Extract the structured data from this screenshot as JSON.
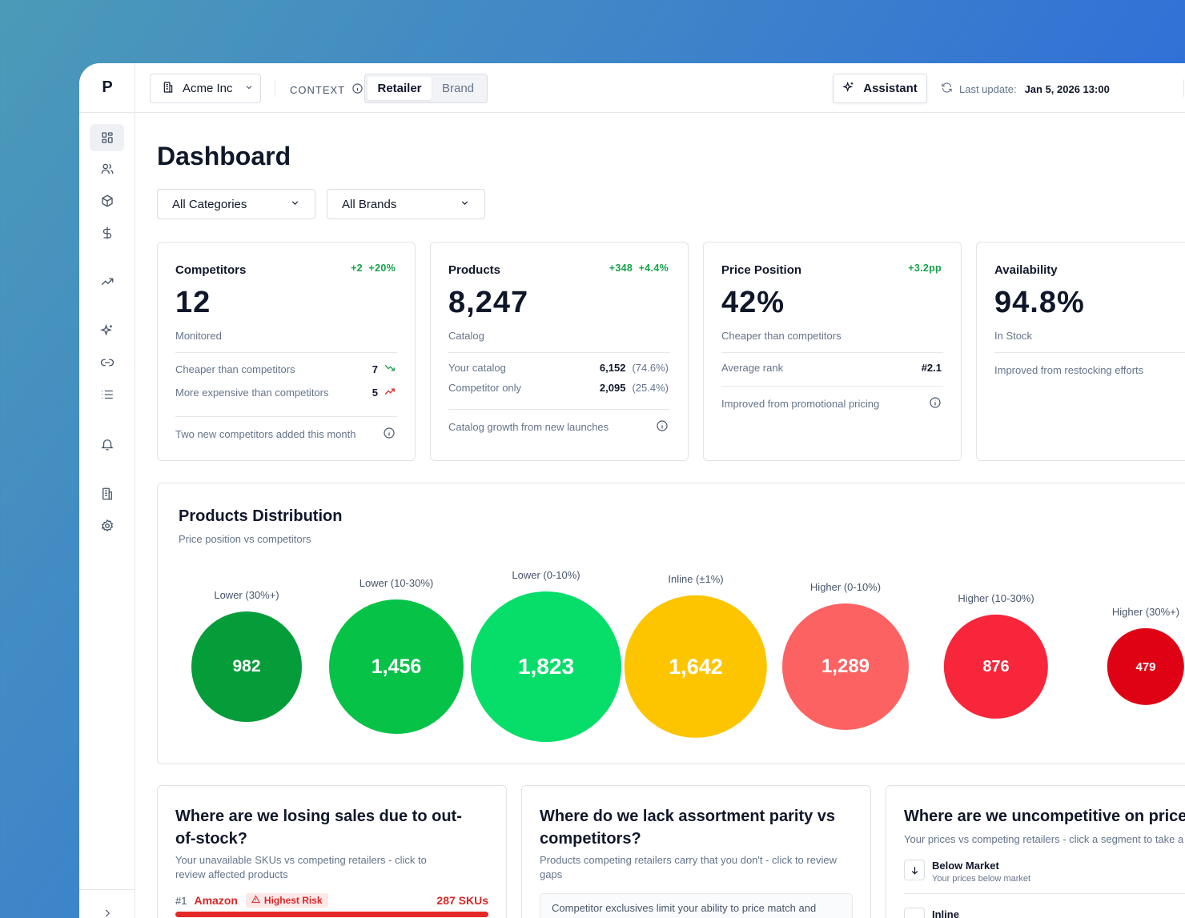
{
  "app": {
    "logo": "P"
  },
  "topbar": {
    "org": "Acme Inc",
    "context_label": "CONTEXT",
    "context_options": [
      "Retailer",
      "Brand"
    ],
    "assistant_label": "Assistant",
    "last_update_label": "Last update:",
    "last_update_value": "Jan 5, 2026 13:00"
  },
  "sidebar": {
    "items": [
      "dashboard-icon",
      "users-icon",
      "box-icon",
      "dollar-icon",
      "trend-icon",
      "sparkles-icon",
      "link-icon",
      "list-icon",
      "bell-icon",
      "building-icon",
      "gear-icon"
    ],
    "active": "dashboard-icon"
  },
  "page": {
    "title": "Dashboard",
    "filters": [
      "All Categories",
      "All Brands"
    ]
  },
  "cards": {
    "competitors": {
      "title": "Competitors",
      "delta": "+2  +20%",
      "value": "12",
      "sub": "Monitored",
      "rows": [
        {
          "label": "Cheaper than competitors",
          "value": "7"
        },
        {
          "label": "More expensive than competitors",
          "value": "5"
        }
      ],
      "note": "Two new competitors added this month"
    },
    "products": {
      "title": "Products",
      "delta": "+348  +4.4%",
      "value": "8,247",
      "sub": "Catalog",
      "rows": [
        {
          "label": "Your catalog",
          "value": "6,152",
          "pct": "(74.6%)"
        },
        {
          "label": "Competitor only",
          "value": "2,095",
          "pct": "(25.4%)"
        }
      ],
      "note": "Catalog growth from new launches"
    },
    "price_position": {
      "title": "Price Position",
      "delta": "+3.2pp",
      "value": "42%",
      "sub": "Cheaper than competitors",
      "rows": [
        {
          "label": "Average rank",
          "value": "#2.1"
        }
      ],
      "note": "Improved from promotional pricing"
    },
    "availability": {
      "title": "Availability",
      "value": "94.8%",
      "sub": "In Stock",
      "note": "Improved from restocking efforts"
    }
  },
  "distribution": {
    "title": "Products Distribution",
    "subtitle": "Price position vs competitors",
    "segments": [
      {
        "label": "Lower (30%+)",
        "value": "982",
        "color": "#059d3a"
      },
      {
        "label": "Lower (10-30%)",
        "value": "1,456",
        "color": "#06c247"
      },
      {
        "label": "Lower (0-10%)",
        "value": "1,823",
        "color": "#07de6a"
      },
      {
        "label": "Inline (±1%)",
        "value": "1,642",
        "color": "#fdc500"
      },
      {
        "label": "Higher (0-10%)",
        "value": "1,289",
        "color": "#fd6262"
      },
      {
        "label": "Higher (10-30%)",
        "value": "876",
        "color": "#f8263a"
      },
      {
        "label": "Higher (30%+)",
        "value": "479",
        "color": "#df0215"
      }
    ]
  },
  "questions": {
    "oos": {
      "title": "Where are we losing sales due to out-of-stock?",
      "subtitle": "Your unavailable SKUs vs competing retailers - click to review affected products",
      "rank": "#1",
      "retailer": "Amazon",
      "badge": "Highest Risk",
      "skus": "287 SKUs"
    },
    "assortment": {
      "title": "Where do we lack assortment parity vs competitors?",
      "subtitle": "Products competing retailers carry that you don't - click to review gaps",
      "callout": "Competitor exclusives limit your ability to price match and"
    },
    "price": {
      "title": "Where are we uncompetitive on price?",
      "subtitle": "Your prices vs competing retailers - click a segment to take a",
      "items": [
        {
          "label": "Below Market",
          "sub": "Your prices below market"
        },
        {
          "label": "Inline",
          "sub": ""
        }
      ]
    }
  }
}
